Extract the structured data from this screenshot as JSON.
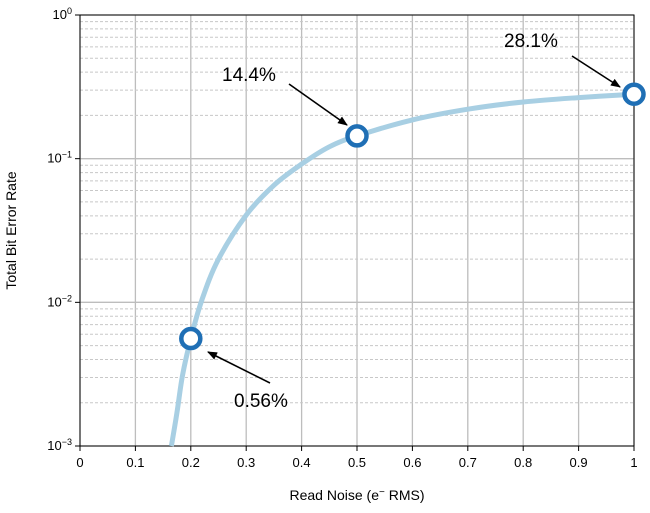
{
  "chart_data": {
    "type": "line",
    "title": "",
    "xlabel": "Read Noise (e",
    "xlabel_sup": "−",
    "xlabel_suffix": " RMS)",
    "ylabel": "Total Bit Error Rate",
    "xlim": [
      0,
      1
    ],
    "ylim": [
      0.001,
      1
    ],
    "yscale": "log",
    "grid": true,
    "x_ticks": [
      "0",
      "0.1",
      "0.2",
      "0.3",
      "0.4",
      "0.5",
      "0.6",
      "0.7",
      "0.8",
      "0.9",
      "1"
    ],
    "y_ticks": [
      {
        "base": "10",
        "exp": "−3",
        "value": 0.001
      },
      {
        "base": "10",
        "exp": "−2",
        "value": 0.01
      },
      {
        "base": "10",
        "exp": "−1",
        "value": 0.1
      },
      {
        "base": "10",
        "exp": "0",
        "value": 1
      }
    ],
    "series": [
      {
        "color": "#a8cfe3",
        "x": [
          0.165,
          0.175,
          0.185,
          0.2,
          0.22,
          0.25,
          0.3,
          0.35,
          0.4,
          0.45,
          0.5,
          0.6,
          0.7,
          0.8,
          0.9,
          1.0
        ],
        "y": [
          0.001,
          0.0017,
          0.0031,
          0.0056,
          0.0104,
          0.02,
          0.0405,
          0.0653,
          0.0917,
          0.121,
          0.144,
          0.186,
          0.221,
          0.248,
          0.266,
          0.281
        ]
      }
    ],
    "markers": [
      {
        "x": 0.2,
        "y": 0.0056,
        "label": "0.56%"
      },
      {
        "x": 0.5,
        "y": 0.144,
        "label": "14.4%"
      },
      {
        "x": 1.0,
        "y": 0.281,
        "label": "28.1%"
      }
    ],
    "marker_color": "#1f6fb5"
  }
}
